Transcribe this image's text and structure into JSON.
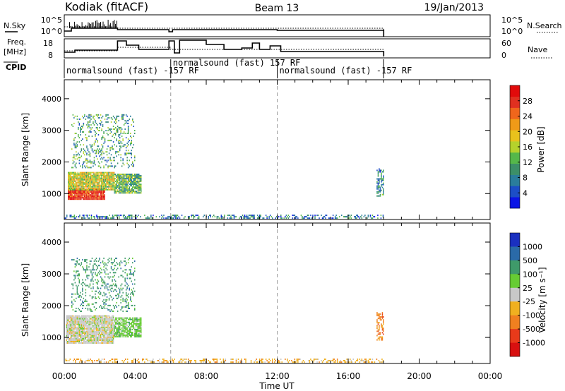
{
  "header": {
    "station": "Kodiak (fitACF)",
    "beam": "Beam 13",
    "date": "19/Jan/2013"
  },
  "ctrl": {
    "nsky_label": "N.Sky",
    "nsearch_label": "N.Search",
    "freq_label_1": "Freq.",
    "freq_label_2": "[MHz]",
    "nave_label": "Nave",
    "cpid_label": "CPID",
    "noise_ticks_left": [
      "10^5",
      "10^0"
    ],
    "noise_ticks_right": [
      "10^5",
      "10^0"
    ],
    "freq_ticks_left": [
      "18",
      "8"
    ],
    "nave_ticks_right": [
      "60",
      "0"
    ],
    "cpid_segments": [
      {
        "label": "normalsound (fast) -157 RF",
        "start_h": 0,
        "end_h": 6
      },
      {
        "label": "normalsound (fast) 157 RF",
        "start_h": 6,
        "end_h": 12
      },
      {
        "label": "normalsound (fast) -157 RF",
        "start_h": 12,
        "end_h": 18
      }
    ]
  },
  "chart_data": [
    {
      "type": "heatmap",
      "panel": "power",
      "ylabel": "Slant Range [km]",
      "xlabel": "Time UT",
      "x_range_hours": [
        0,
        24
      ],
      "ylim": [
        180,
        4600
      ],
      "yticks": [
        1000,
        2000,
        3000,
        4000
      ],
      "xticks": [
        "00:00",
        "04:00",
        "08:00",
        "12:00",
        "16:00",
        "20:00",
        "00:00"
      ],
      "colorbar": {
        "label": "Power [dB]",
        "range": [
          0,
          32
        ],
        "ticks": [
          4,
          8,
          12,
          16,
          20,
          24,
          28
        ],
        "colors": [
          "#0a14e6",
          "#1c4ec7",
          "#2a7d9c",
          "#3c8f68",
          "#55b84a",
          "#b5d22c",
          "#e8c21c",
          "#f09a18",
          "#f0661c",
          "#e03020",
          "#e10b0b"
        ]
      },
      "regions": [
        {
          "t0": 0.2,
          "t1": 2.3,
          "r0": 800,
          "r1": 1150,
          "power": 30,
          "density": 0.95
        },
        {
          "t0": 0.2,
          "t1": 2.8,
          "r0": 1100,
          "r1": 1650,
          "power": 17,
          "density": 0.9
        },
        {
          "t0": 2.8,
          "t1": 4.3,
          "r0": 1000,
          "r1": 1600,
          "power": 12,
          "density": 0.85
        },
        {
          "t0": 0.4,
          "t1": 4.0,
          "r0": 1800,
          "r1": 3500,
          "power": 10,
          "density": 0.22
        },
        {
          "t0": 0.0,
          "t1": 18.0,
          "r0": 200,
          "r1": 330,
          "power": 7,
          "density": 0.35
        },
        {
          "t0": 17.6,
          "t1": 18.0,
          "r0": 900,
          "r1": 1800,
          "power": 8,
          "density": 0.5
        }
      ]
    },
    {
      "type": "heatmap",
      "panel": "velocity",
      "ylabel": "Slant Range [km]",
      "xlabel": "Time UT",
      "x_range_hours": [
        0,
        24
      ],
      "ylim": [
        180,
        4600
      ],
      "yticks": [
        1000,
        2000,
        3000,
        4000
      ],
      "xticks": [
        "00:00",
        "04:00",
        "08:00",
        "12:00",
        "16:00",
        "20:00",
        "00:00"
      ],
      "colorbar": {
        "label": "Velocity [m s⁻¹]",
        "ticks": [
          "1000",
          "500",
          "100",
          "25",
          "-25",
          "-100",
          "-500",
          "-1000"
        ],
        "colors": [
          "#1a30c0",
          "#2a6aa8",
          "#3f9a6a",
          "#66cc33",
          "#c8c8c8",
          "#f0b020",
          "#f08020",
          "#e83a1a",
          "#d81010"
        ]
      },
      "regions": [
        {
          "t0": 0.1,
          "t1": 2.8,
          "r0": 800,
          "r1": 1700,
          "vel_class": 4,
          "density": 0.95
        },
        {
          "t0": 2.8,
          "t1": 4.3,
          "r0": 1000,
          "r1": 1600,
          "vel_class": 3,
          "density": 0.8
        },
        {
          "t0": 0.4,
          "t1": 4.0,
          "r0": 1800,
          "r1": 3500,
          "vel_class": 2,
          "density": 0.22
        },
        {
          "t0": 0.0,
          "t1": 18.0,
          "r0": 200,
          "r1": 330,
          "vel_class": 5,
          "density": 0.35
        },
        {
          "t0": 17.6,
          "t1": 18.0,
          "r0": 900,
          "r1": 1800,
          "vel_class": 6,
          "density": 0.5
        }
      ]
    }
  ]
}
